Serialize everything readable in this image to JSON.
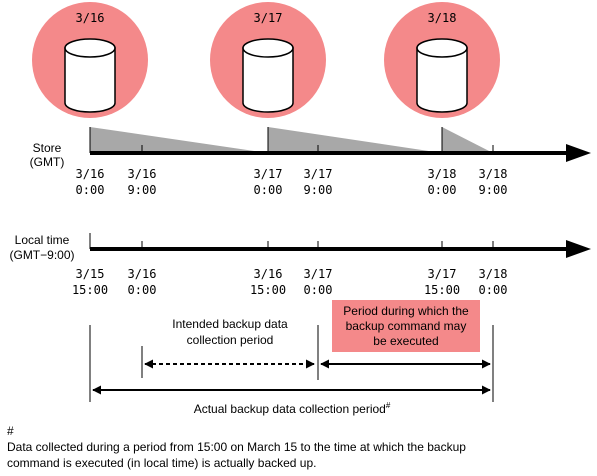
{
  "store_dates": [
    "3/16",
    "3/17",
    "3/18"
  ],
  "store_label_line1": "Store",
  "store_label_line2": "(GMT)",
  "local_label_line1": "Local time",
  "local_label_line2": "(GMT−9:00)",
  "store_ticks": [
    {
      "date": "3/16",
      "time": "0:00"
    },
    {
      "date": "3/16",
      "time": "9:00"
    },
    {
      "date": "3/17",
      "time": "0:00"
    },
    {
      "date": "3/17",
      "time": "9:00"
    },
    {
      "date": "3/18",
      "time": "0:00"
    },
    {
      "date": "3/18",
      "time": "9:00"
    }
  ],
  "local_ticks": [
    {
      "date": "3/15",
      "time": "15:00"
    },
    {
      "date": "3/16",
      "time": "0:00"
    },
    {
      "date": "3/16",
      "time": "15:00"
    },
    {
      "date": "3/17",
      "time": "0:00"
    },
    {
      "date": "3/17",
      "time": "15:00"
    },
    {
      "date": "3/18",
      "time": "0:00"
    }
  ],
  "intended_line1": "Intended backup data",
  "intended_line2": "collection period",
  "exec_line1": "Period during which the",
  "exec_line2": "backup command may",
  "exec_line3": "be executed",
  "actual_label": "Actual backup data collection period",
  "footnote_mark": "#",
  "note_mark": "#",
  "note_line1": "Data collected during a period from 15:00 on March 15 to the time at which the backup",
  "note_line2": "command is executed (in local time) is actually backed up.",
  "colors": {
    "circle": "#f4898a",
    "exec_box": "#f4898a",
    "wedge": "#a8a8a8",
    "line": "#000000"
  }
}
